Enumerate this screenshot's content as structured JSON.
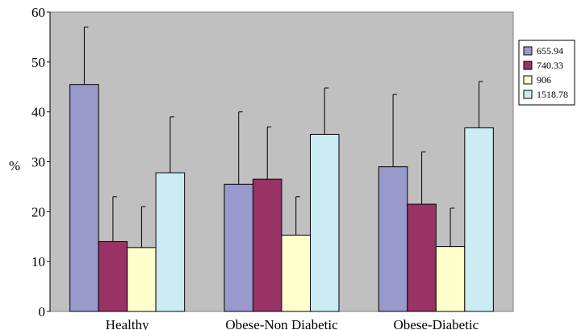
{
  "chart_data": {
    "type": "bar",
    "title": "",
    "xlabel": "",
    "ylabel": "%",
    "ylim": [
      0,
      60
    ],
    "yticks": [
      0,
      10,
      20,
      30,
      40,
      50,
      60
    ],
    "grid": false,
    "legend_position": "right",
    "plot_background": "#c0c0c0",
    "categories": [
      "Healthy",
      "Obese-Non Diabetic",
      "Obese-Diabetic"
    ],
    "series": [
      {
        "name": "655.94",
        "color": "#9999cc",
        "values": [
          45.5,
          25.5,
          29.0
        ],
        "errors": [
          11.5,
          14.5,
          14.5
        ]
      },
      {
        "name": "740.33",
        "color": "#993366",
        "values": [
          14.0,
          26.5,
          21.5
        ],
        "errors": [
          9.0,
          10.5,
          10.5
        ]
      },
      {
        "name": "906",
        "color": "#ffffcc",
        "values": [
          12.8,
          15.3,
          13.0
        ],
        "errors": [
          8.2,
          7.7,
          7.7
        ]
      },
      {
        "name": "1518.78",
        "color": "#ccecf4",
        "values": [
          27.8,
          35.5,
          36.8
        ],
        "errors": [
          11.2,
          9.3,
          9.3
        ]
      }
    ]
  }
}
